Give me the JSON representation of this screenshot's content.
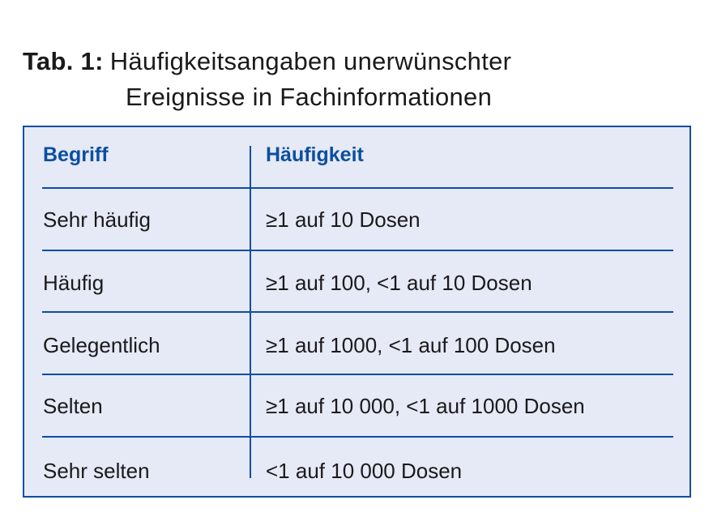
{
  "title": {
    "label": "Tab. 1:",
    "line1": "Häufigkeitsangaben unerwünschter",
    "line2": "Ereignisse in Fachinformationen"
  },
  "table": {
    "headers": [
      "Begriff",
      "Häufigkeit"
    ],
    "rows": [
      [
        "Sehr häufig",
        "≥1 auf 10 Dosen"
      ],
      [
        "Häufig",
        "≥1 auf 100, <1 auf 10 Dosen"
      ],
      [
        "Gelegentlich",
        "≥1 auf 1000, <1 auf 100 Dosen"
      ],
      [
        "Selten",
        "≥1 auf 10 000, <1 auf 1000 Dosen"
      ],
      [
        "Sehr selten",
        "<1 auf 10 000 Dosen"
      ]
    ]
  },
  "colors": {
    "accent": "#0a4fa0",
    "background": "#e6e9f6"
  }
}
